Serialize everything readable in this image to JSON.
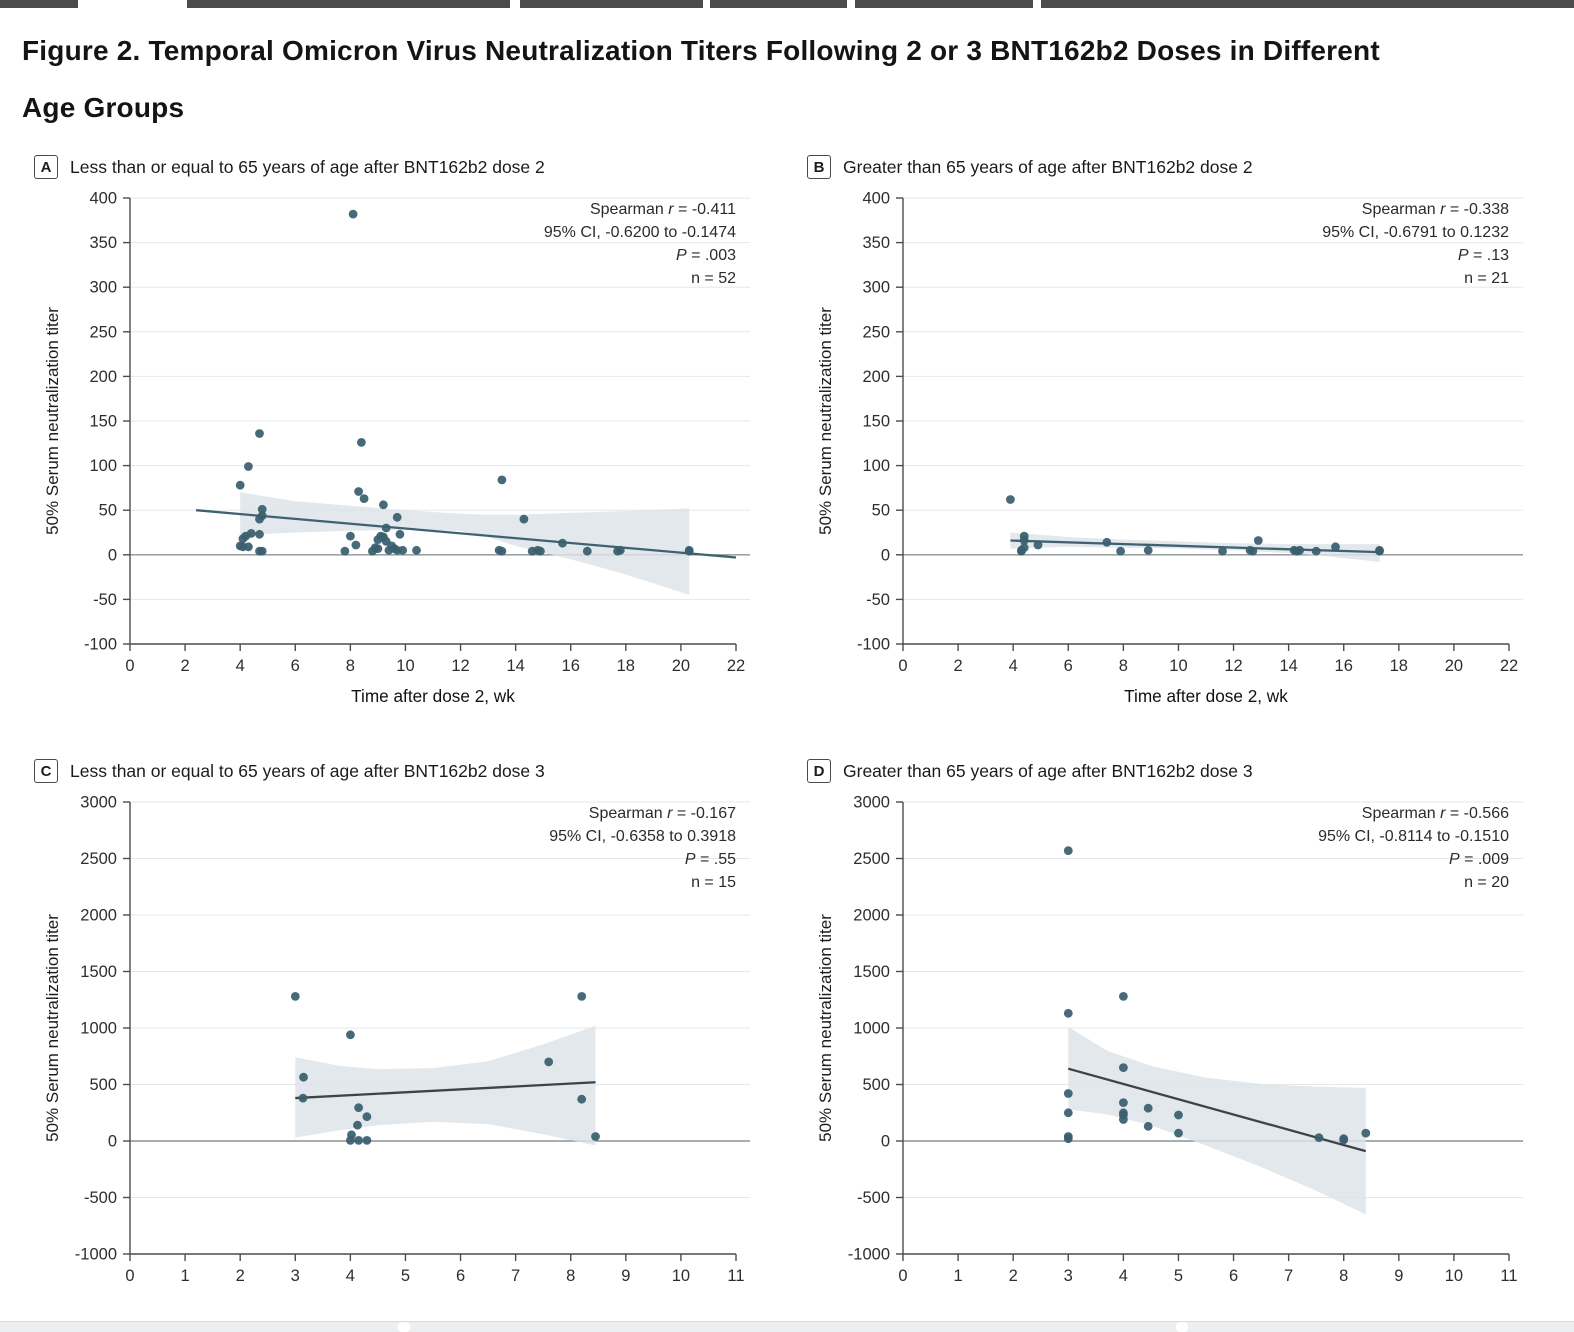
{
  "page": {
    "title_line1": "Figure 2.  Temporal Omicron Virus Neutralization Titers Following 2 or 3 BNT162b2 Doses in Different",
    "title_line2": "Age Groups"
  },
  "colors": {
    "dot": "#3a5f6e",
    "band": "#dce3e7",
    "grid": "#e5e7e8",
    "zero_line": "#8d9294",
    "axis": "#4c4c4c",
    "tick_label": "#2e2e2e",
    "stats_text": "#2b2b2b",
    "topbar_segment": "#4b4b4b",
    "bottombar": "#eceeef"
  },
  "chart_data": [
    {
      "type": "scatter",
      "panel_label": "A",
      "title": "Less than or equal to 65 years of age after BNT162b2 dose 2",
      "xlabel": "Time after dose 2, wk",
      "ylabel": "50% Serum neutralization titer",
      "xlim": [
        0,
        22
      ],
      "ylim": [
        -100,
        400
      ],
      "xticks": [
        0,
        2,
        4,
        6,
        8,
        10,
        12,
        14,
        16,
        18,
        20,
        22
      ],
      "yticks": [
        -100,
        -50,
        0,
        50,
        100,
        150,
        200,
        250,
        300,
        350,
        400
      ],
      "grid": true,
      "stats_position": "top-right",
      "stats": [
        {
          "pre": "Spearman ",
          "italic": "r",
          "post": " = -0.411"
        },
        {
          "pre": "95% CI, -0.6200 to -0.1474"
        },
        {
          "italic": "P",
          "post": " = .003"
        },
        {
          "pre": "n = 52"
        }
      ],
      "trend_color": "#3e6272",
      "trend": [
        [
          2.4,
          50
        ],
        [
          22,
          -3
        ]
      ],
      "band": [
        [
          4.0,
          70,
          22
        ],
        [
          6,
          60,
          25
        ],
        [
          8,
          55,
          27
        ],
        [
          10,
          50,
          28
        ],
        [
          12,
          46,
          27
        ],
        [
          13,
          45,
          20
        ],
        [
          14,
          45,
          10
        ],
        [
          16,
          47,
          -5
        ],
        [
          18,
          49,
          -22
        ],
        [
          20.3,
          52,
          -45
        ]
      ],
      "points": [
        [
          8.1,
          382
        ],
        [
          4.7,
          136
        ],
        [
          8.4,
          126
        ],
        [
          4.3,
          99
        ],
        [
          13.5,
          84
        ],
        [
          4.0,
          78
        ],
        [
          8.3,
          71
        ],
        [
          8.5,
          63
        ],
        [
          9.2,
          56
        ],
        [
          4.8,
          51
        ],
        [
          4.8,
          44
        ],
        [
          9.7,
          42
        ],
        [
          14.3,
          40
        ],
        [
          4.7,
          40
        ],
        [
          9.3,
          30
        ],
        [
          9.8,
          23
        ],
        [
          4.4,
          24
        ],
        [
          4.7,
          23
        ],
        [
          4.2,
          21
        ],
        [
          9.1,
          21
        ],
        [
          9.2,
          20
        ],
        [
          8.0,
          21
        ],
        [
          9.0,
          17
        ],
        [
          4.1,
          18
        ],
        [
          9.3,
          15
        ],
        [
          8.2,
          11
        ],
        [
          4.0,
          10
        ],
        [
          4.1,
          9
        ],
        [
          4.3,
          9
        ],
        [
          8.9,
          8
        ],
        [
          9.0,
          7
        ],
        [
          9.5,
          10
        ],
        [
          9.6,
          7
        ],
        [
          9.4,
          5
        ],
        [
          8.8,
          4
        ],
        [
          9.7,
          5
        ],
        [
          9.9,
          5
        ],
        [
          7.8,
          4
        ],
        [
          10.4,
          5
        ],
        [
          4.7,
          4
        ],
        [
          4.8,
          4
        ],
        [
          13.4,
          5
        ],
        [
          13.5,
          4
        ],
        [
          14.8,
          5
        ],
        [
          14.9,
          4
        ],
        [
          15.7,
          13
        ],
        [
          16.6,
          4
        ],
        [
          17.7,
          4
        ],
        [
          17.8,
          5
        ],
        [
          20.3,
          5
        ],
        [
          20.3,
          4
        ],
        [
          14.6,
          4
        ]
      ]
    },
    {
      "type": "scatter",
      "panel_label": "B",
      "title": "Greater than 65 years of age after BNT162b2 dose 2",
      "xlabel": "Time after dose 2, wk",
      "ylabel": "50% Serum neutralization titer",
      "xlim": [
        0,
        22
      ],
      "ylim": [
        -100,
        400
      ],
      "xticks": [
        0,
        2,
        4,
        6,
        8,
        10,
        12,
        14,
        16,
        18,
        20,
        22
      ],
      "yticks": [
        -100,
        -50,
        0,
        50,
        100,
        150,
        200,
        250,
        300,
        350,
        400
      ],
      "grid": true,
      "stats_position": "top-right",
      "stats": [
        {
          "pre": "Spearman ",
          "italic": "r",
          "post": " = -0.338"
        },
        {
          "pre": "95% CI, -0.6791 to 0.1232"
        },
        {
          "italic": "P",
          "post": " = .13"
        },
        {
          "pre": "n = 21"
        }
      ],
      "trend_color": "#3e6272",
      "trend": [
        [
          3.9,
          16
        ],
        [
          17.3,
          3
        ]
      ],
      "band": [
        [
          3.9,
          25,
          7
        ],
        [
          6,
          20,
          9
        ],
        [
          8,
          17,
          8
        ],
        [
          10,
          15,
          7
        ],
        [
          12,
          13,
          5
        ],
        [
          14,
          12,
          2
        ],
        [
          15.5,
          12,
          -2
        ],
        [
          17.3,
          12,
          -8
        ]
      ],
      "points": [
        [
          3.9,
          62
        ],
        [
          4.4,
          21
        ],
        [
          4.4,
          16
        ],
        [
          4.3,
          5
        ],
        [
          4.3,
          4
        ],
        [
          4.4,
          8
        ],
        [
          4.9,
          11
        ],
        [
          7.4,
          14
        ],
        [
          7.9,
          4
        ],
        [
          8.9,
          5
        ],
        [
          11.6,
          4
        ],
        [
          12.6,
          5
        ],
        [
          12.7,
          4
        ],
        [
          12.9,
          16
        ],
        [
          14.2,
          5
        ],
        [
          14.3,
          4
        ],
        [
          14.4,
          5
        ],
        [
          15.0,
          4
        ],
        [
          15.7,
          9
        ],
        [
          17.3,
          4
        ],
        [
          17.3,
          5
        ]
      ]
    },
    {
      "type": "scatter",
      "panel_label": "C",
      "title": "Less than or equal to 65 years of age after BNT162b2 dose 3",
      "xlabel": "",
      "ylabel": "50% Serum neutralization titer",
      "xlim": [
        0,
        11
      ],
      "ylim": [
        -1000,
        3000
      ],
      "xticks": [
        0,
        1,
        2,
        3,
        4,
        5,
        6,
        7,
        8,
        9,
        10,
        11
      ],
      "yticks": [
        -1000,
        -500,
        0,
        500,
        1000,
        1500,
        2000,
        2500,
        3000
      ],
      "grid": true,
      "stats_position": "top-right",
      "stats": [
        {
          "pre": "Spearman ",
          "italic": "r",
          "post": " = -0.167"
        },
        {
          "pre": "95% CI, -0.6358 to 0.3918"
        },
        {
          "italic": "P",
          "post": " = .55"
        },
        {
          "pre": "n = 15"
        }
      ],
      "trend_color": "#3d4347",
      "trend": [
        [
          3.0,
          380
        ],
        [
          8.45,
          520
        ]
      ],
      "band": [
        [
          3.0,
          740,
          30
        ],
        [
          3.8,
          665,
          95
        ],
        [
          4.5,
          635,
          140
        ],
        [
          5.5,
          645,
          170
        ],
        [
          6.5,
          705,
          150
        ],
        [
          7.5,
          855,
          60
        ],
        [
          8.45,
          1020,
          -40
        ]
      ],
      "points": [
        [
          3.0,
          1280
        ],
        [
          3.15,
          565
        ],
        [
          3.14,
          380
        ],
        [
          4.0,
          940
        ],
        [
          4.15,
          295
        ],
        [
          4.3,
          215
        ],
        [
          4.13,
          140
        ],
        [
          4.02,
          55
        ],
        [
          4.0,
          5
        ],
        [
          4.15,
          5
        ],
        [
          4.3,
          5
        ],
        [
          7.6,
          700
        ],
        [
          8.2,
          1280
        ],
        [
          8.2,
          370
        ],
        [
          8.45,
          40
        ]
      ]
    },
    {
      "type": "scatter",
      "panel_label": "D",
      "title": "Greater than 65 years of age after BNT162b2 dose 3",
      "xlabel": "",
      "ylabel": "50% Serum neutralization titer",
      "xlim": [
        0,
        11
      ],
      "ylim": [
        -1000,
        3000
      ],
      "xticks": [
        0,
        1,
        2,
        3,
        4,
        5,
        6,
        7,
        8,
        9,
        10,
        11
      ],
      "yticks": [
        -1000,
        -500,
        0,
        500,
        1000,
        1500,
        2000,
        2500,
        3000
      ],
      "grid": true,
      "stats_position": "top-right",
      "stats": [
        {
          "pre": "Spearman ",
          "italic": "r",
          "post": " = -0.566"
        },
        {
          "pre": "95% CI, -0.8114 to -0.1510"
        },
        {
          "italic": "P",
          "post": " = .009"
        },
        {
          "pre": "n = 20"
        }
      ],
      "trend_color": "#3d4347",
      "trend": [
        [
          3.0,
          640
        ],
        [
          8.4,
          -90
        ]
      ],
      "band": [
        [
          3.0,
          1010,
          280
        ],
        [
          3.7,
          800,
          235
        ],
        [
          4.5,
          665,
          140
        ],
        [
          5.5,
          560,
          -40
        ],
        [
          6.5,
          505,
          -230
        ],
        [
          7.5,
          480,
          -440
        ],
        [
          8.4,
          470,
          -650
        ]
      ],
      "points": [
        [
          3.0,
          2570
        ],
        [
          3.0,
          1130
        ],
        [
          3.0,
          420
        ],
        [
          3.0,
          250
        ],
        [
          3.0,
          40
        ],
        [
          3.0,
          20
        ],
        [
          4.0,
          1280
        ],
        [
          4.0,
          650
        ],
        [
          4.0,
          340
        ],
        [
          4.0,
          250
        ],
        [
          4.0,
          230
        ],
        [
          4.0,
          190
        ],
        [
          4.45,
          290
        ],
        [
          4.45,
          130
        ],
        [
          5.0,
          230
        ],
        [
          5.0,
          70
        ],
        [
          7.55,
          30
        ],
        [
          8.0,
          20
        ],
        [
          8.0,
          10
        ],
        [
          8.4,
          70
        ]
      ]
    }
  ]
}
